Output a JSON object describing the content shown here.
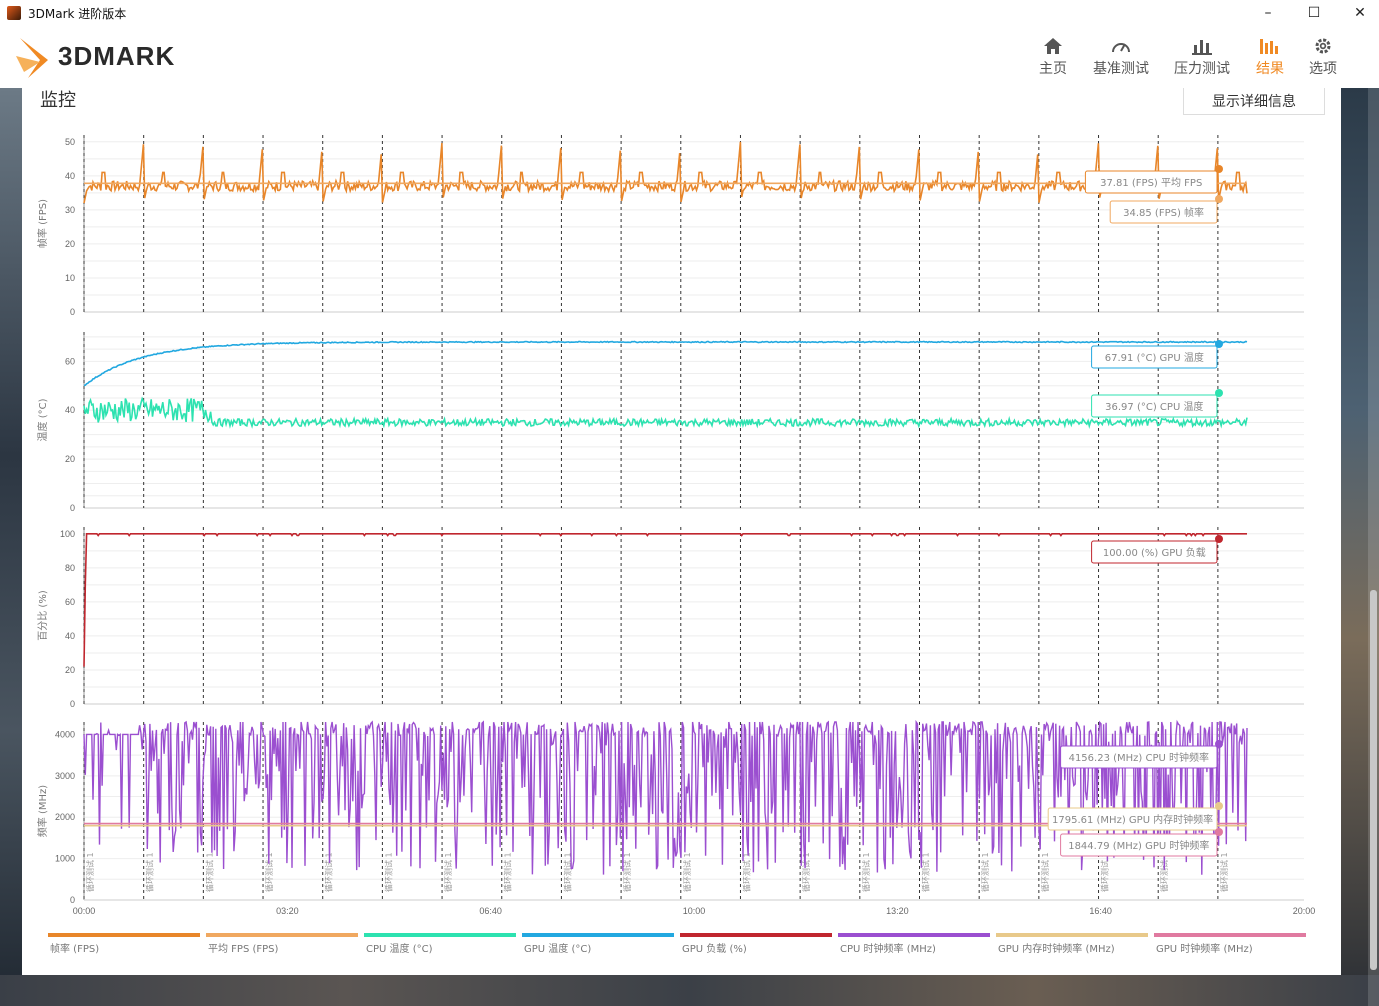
{
  "window": {
    "title": "3DMark 进阶版本",
    "minimize": "–",
    "maximize": "☐",
    "close": "✕"
  },
  "nav": [
    {
      "label": "主页",
      "icon": "home-icon"
    },
    {
      "label": "基准测试",
      "icon": "gauge-icon"
    },
    {
      "label": "压力测试",
      "icon": "bar-chart-icon"
    },
    {
      "label": "结果",
      "icon": "results-icon",
      "active": true
    },
    {
      "label": "选项",
      "icon": "gear-icon"
    }
  ],
  "logo_text": "3DMARK",
  "section": {
    "title": "监控",
    "detail_button": "显示详细信息"
  },
  "colors": {
    "fps": "#e8862a",
    "avg_fps": "#f0a860",
    "cpu_temp": "#2de2b0",
    "gpu_temp": "#22a8e0",
    "gpu_load": "#c0262e",
    "cpu_clock": "#9b4fd0",
    "gpu_mem_clock": "#e8c98a",
    "gpu_clock": "#e07aa0",
    "accent": "#f08a24"
  },
  "chart_data": {
    "type": "line",
    "x_ticks": [
      "00:00",
      "03:20",
      "06:40",
      "10:00",
      "13:20",
      "16:40",
      "20:00"
    ],
    "x_range_seconds": [
      0,
      1200
    ],
    "loop_marker_label": "循环测试 1",
    "panels": [
      {
        "ylabel": "帧率 (FPS)",
        "yticks": [
          0,
          10,
          20,
          30,
          40,
          50
        ],
        "ylim": [
          0,
          52
        ],
        "series": [
          {
            "name": "帧率 (FPS)",
            "color": "#e8862a",
            "pattern": "sawtooth",
            "base": 37,
            "low": 32,
            "peak": 50,
            "current": 34.85
          },
          {
            "name": "平均 FPS (FPS)",
            "color": "#f0a860",
            "pattern": "flat",
            "value": 37.81
          }
        ],
        "tooltips": [
          "37.81 (FPS) 平均 FPS",
          "34.85 (FPS) 帧率"
        ]
      },
      {
        "ylabel": "温度 (°C)",
        "yticks": [
          0,
          20,
          40,
          60
        ],
        "ylim": [
          0,
          72
        ],
        "series": [
          {
            "name": "GPU 温度 (°C)",
            "color": "#22a8e0",
            "pattern": "warmup",
            "start": 50,
            "end": 67.91
          },
          {
            "name": "CPU 温度 (°C)",
            "color": "#2de2b0",
            "pattern": "noisy",
            "base": 35,
            "early": 40,
            "current": 36.97
          }
        ],
        "tooltips": [
          "67.91 (°C) GPU 温度",
          "36.97 (°C) CPU 温度"
        ]
      },
      {
        "ylabel": "百分比 (%)",
        "yticks": [
          0,
          20,
          40,
          60,
          80,
          100
        ],
        "ylim": [
          0,
          104
        ],
        "series": [
          {
            "name": "GPU 负载 (%)",
            "color": "#c0262e",
            "pattern": "flat",
            "value": 100
          }
        ],
        "tooltips": [
          "100.00 (%) GPU 负载"
        ]
      },
      {
        "ylabel": "频率 (MHz)",
        "yticks": [
          0,
          1000,
          2000,
          3000,
          4000
        ],
        "ylim": [
          0,
          4300
        ],
        "series": [
          {
            "name": "CPU 时钟频率 (MHz)",
            "color": "#9b4fd0",
            "pattern": "erratic",
            "high": 4156.23,
            "low": 1800
          },
          {
            "name": "GPU 内存时钟频率 (MHz)",
            "color": "#e8c98a",
            "pattern": "flat",
            "value": 1795.61
          },
          {
            "name": "GPU 时钟频率 (MHz)",
            "color": "#e07aa0",
            "pattern": "flat",
            "value": 1844.79
          }
        ],
        "tooltips": [
          "4156.23 (MHz) CPU 时钟频率",
          "1795.61 (MHz) GPU 内存时钟频率",
          "1844.79 (MHz) GPU 时钟频率"
        ]
      }
    ],
    "legend": [
      {
        "label": "帧率 (FPS)",
        "color": "#e8862a"
      },
      {
        "label": "平均 FPS (FPS)",
        "color": "#f0a860"
      },
      {
        "label": "CPU 温度 (°C)",
        "color": "#2de2b0"
      },
      {
        "label": "GPU 温度 (°C)",
        "color": "#22a8e0"
      },
      {
        "label": "GPU 负载 (%)",
        "color": "#c0262e"
      },
      {
        "label": "CPU 时钟频率 (MHz)",
        "color": "#9b4fd0"
      },
      {
        "label": "GPU 内存时钟频率 (MHz)",
        "color": "#e8c98a"
      },
      {
        "label": "GPU 时钟频率 (MHz)",
        "color": "#e07aa0"
      }
    ]
  }
}
